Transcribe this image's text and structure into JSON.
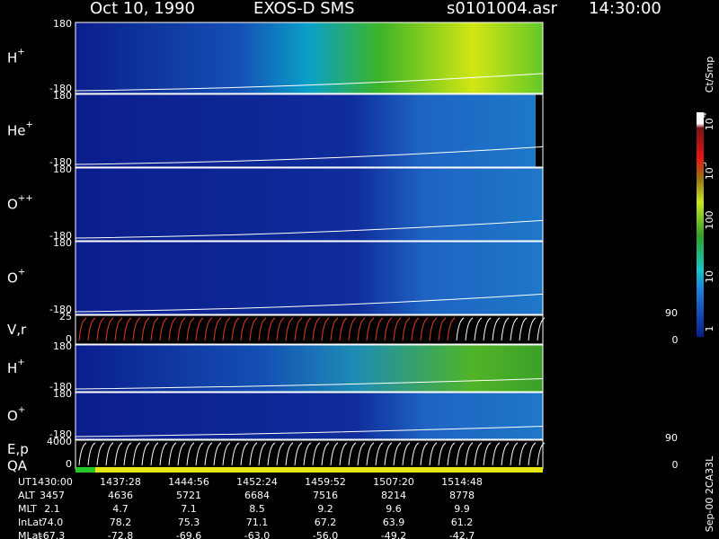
{
  "header": {
    "title": "Oct 10, 1990",
    "instrument": "EXOS-D SMS",
    "file": "s0101004.asr",
    "time": "14:30:00"
  },
  "panels": [
    {
      "label": {
        "base": "H",
        "sup": "+"
      },
      "ticks": [
        "180",
        "-180"
      ]
    },
    {
      "label": {
        "base": "He",
        "sup": "+"
      },
      "ticks": [
        "180",
        "-180"
      ]
    },
    {
      "label": {
        "base": "O",
        "sup": "++"
      },
      "ticks": [
        "180",
        "-180"
      ]
    },
    {
      "label": {
        "base": "O",
        "sup": "+"
      },
      "ticks": [
        "180",
        "-180"
      ]
    },
    {
      "label": {
        "base": "V,r"
      },
      "ticks": [
        "25",
        "0"
      ],
      "right_ticks": [
        "90",
        "0"
      ]
    },
    {
      "label": {
        "base": "H",
        "sup": "+"
      },
      "ticks": [
        "180",
        "-180"
      ]
    },
    {
      "label": {
        "base": "O",
        "sup": "+"
      },
      "ticks": [
        "180",
        "-180"
      ]
    },
    {
      "label": {
        "base": "E,p"
      },
      "ticks": [
        "4000",
        "0"
      ],
      "right_ticks": [
        "90",
        "0"
      ],
      "extra_label": "QA"
    }
  ],
  "colorbar": {
    "unit": "Ct/Smp",
    "ticks": [
      {
        "base": "10",
        "sup": "4"
      },
      {
        "base": "10",
        "sup": "3"
      },
      {
        "base": "100"
      },
      {
        "base": "10"
      },
      {
        "base": "1"
      }
    ]
  },
  "table": {
    "rows": [
      {
        "label": "UT",
        "values": [
          "1430:00",
          "1437:28",
          "1444:56",
          "1452:24",
          "1459:52",
          "1507:20",
          "1514:48"
        ]
      },
      {
        "label": "ALT",
        "values": [
          "3457",
          "4636",
          "5721",
          "6684",
          "7516",
          "8214",
          "8778"
        ]
      },
      {
        "label": "MLT",
        "values": [
          "2.1",
          "4.7",
          "7.1",
          "8.5",
          "9.2",
          "9.6",
          "9.9"
        ]
      },
      {
        "label": "InLat",
        "values": [
          "74.0",
          "78.2",
          "75.3",
          "71.1",
          "67.2",
          "63.9",
          "61.2"
        ]
      },
      {
        "label": "MLat",
        "values": [
          "-67.3",
          "-72.8",
          "-69.6",
          "-63.0",
          "-56.0",
          "-49.2",
          "-42.7"
        ]
      }
    ]
  },
  "footer": "Sep-00 2CA33L"
}
